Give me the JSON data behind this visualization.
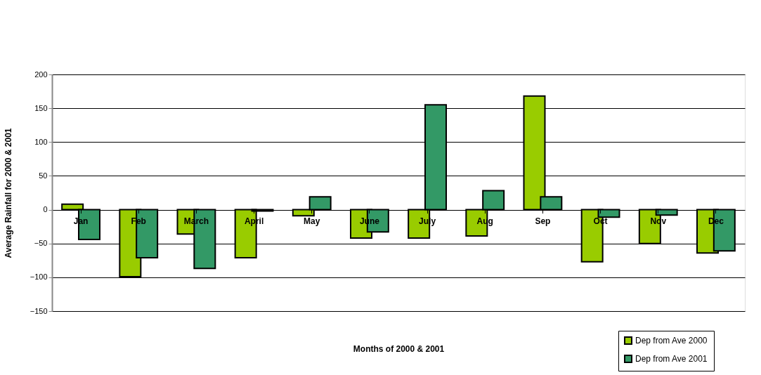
{
  "chart_data": {
    "type": "bar",
    "xlabel": "Months of 2000 & 2001",
    "ylabel": "Average Rainfall for 2000 & 2001",
    "categories": [
      "Jan",
      "Feb",
      "March",
      "April",
      "May",
      "June",
      "July",
      "Aug",
      "Sep",
      "Oct",
      "Nov",
      "Dec"
    ],
    "series": [
      {
        "name": "Dep from Ave 2000",
        "color": "#99cc00",
        "values": [
          8,
          -99,
          -36,
          -71,
          -9,
          -42,
          -42,
          -39,
          168,
          -77,
          -50,
          -64
        ]
      },
      {
        "name": "Dep from Ave 2001",
        "color": "#339966",
        "values": [
          -44,
          -71,
          -87,
          -2,
          19,
          -33,
          155,
          28,
          19,
          -11,
          -8,
          -61
        ]
      }
    ],
    "ylim": [
      -150,
      200
    ],
    "yticks": [
      -150,
      -100,
      -50,
      0,
      50,
      100,
      150,
      200
    ],
    "grid": "y",
    "legend": "bottom right"
  }
}
